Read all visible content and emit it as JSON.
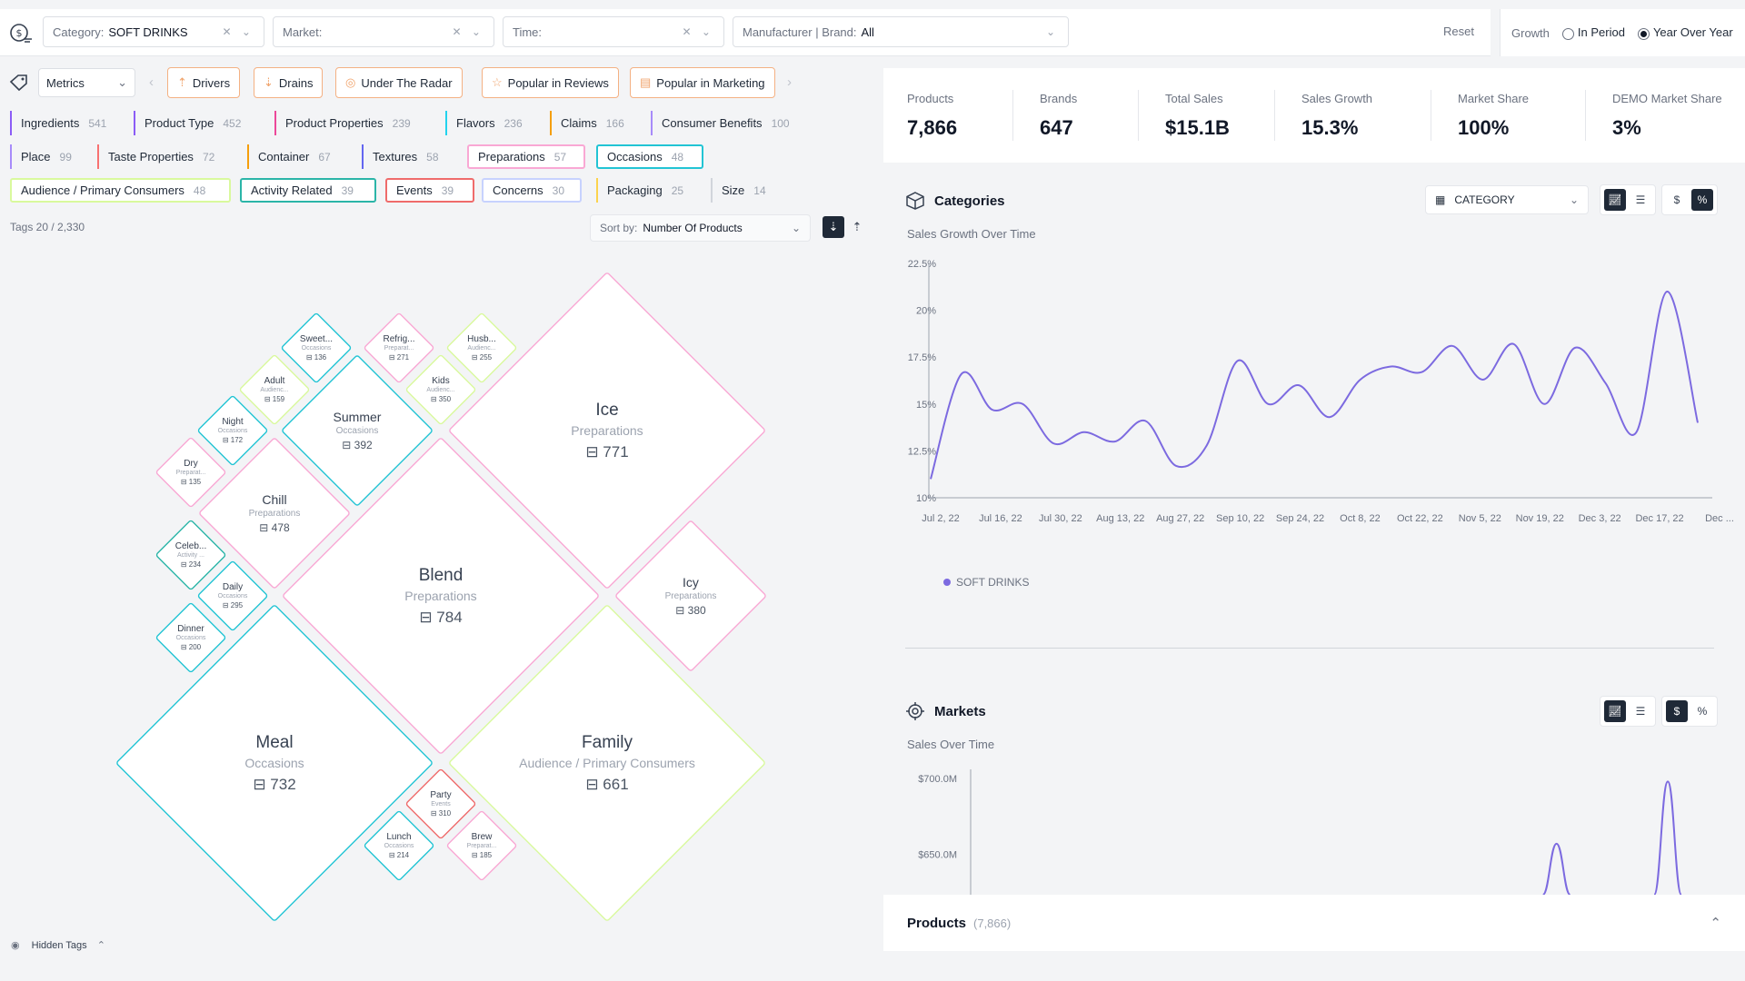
{
  "filters": {
    "category": {
      "label": "Category:",
      "value": "SOFT DRINKS"
    },
    "market": {
      "label": "Market:",
      "value": ""
    },
    "time": {
      "label": "Time:",
      "value": ""
    },
    "brand": {
      "label": "Manufacturer | Brand:",
      "value": "All"
    },
    "reset_label": "Reset"
  },
  "growth": {
    "label": "Growth",
    "options": [
      "In Period",
      "Year Over Year"
    ],
    "selected": "Year Over Year"
  },
  "metrics_select": "Metrics",
  "tabs": [
    {
      "label": "Drivers",
      "icon": "bars-up-icon"
    },
    {
      "label": "Drains",
      "icon": "bars-down-icon"
    },
    {
      "label": "Under The Radar",
      "icon": "radar-icon"
    },
    {
      "label": "Popular in Reviews",
      "icon": "star-icon"
    },
    {
      "label": "Popular in Marketing",
      "icon": "document-icon"
    }
  ],
  "tags": [
    {
      "label": "Ingredients",
      "count": "541",
      "color": "#8b5cf6",
      "style": "plain"
    },
    {
      "label": "Product Type",
      "count": "452",
      "color": "#8b5cf6",
      "style": "plain"
    },
    {
      "label": "Product Properties",
      "count": "239",
      "color": "#ec4899",
      "style": "plain"
    },
    {
      "label": "Flavors",
      "count": "236",
      "color": "#22d3ee",
      "style": "plain"
    },
    {
      "label": "Claims",
      "count": "166",
      "color": "#f59e0b",
      "style": "plain"
    },
    {
      "label": "Consumer Benefits",
      "count": "100",
      "color": "#a78bfa",
      "style": "plain"
    },
    {
      "label": "Place",
      "count": "99",
      "color": "#a78bfa",
      "style": "plain"
    },
    {
      "label": "Taste Properties",
      "count": "72",
      "color": "#f87171",
      "style": "plain"
    },
    {
      "label": "Container",
      "count": "67",
      "color": "#f59e0b",
      "style": "plain"
    },
    {
      "label": "Textures",
      "count": "58",
      "color": "#6366f1",
      "style": "plain"
    },
    {
      "label": "Preparations",
      "count": "57",
      "color": "#f9a8d4",
      "style": "box"
    },
    {
      "label": "Occasions",
      "count": "48",
      "color": "#22c4d4",
      "style": "box"
    },
    {
      "label": "Audience / Primary Consumers",
      "count": "48",
      "color": "#d9f99d",
      "style": "box"
    },
    {
      "label": "Activity Related",
      "count": "39",
      "color": "#2bb5a8",
      "style": "box"
    },
    {
      "label": "Events",
      "count": "39",
      "color": "#ef6b6b",
      "style": "box"
    },
    {
      "label": "Concerns",
      "count": "30",
      "color": "#c7d2fe",
      "style": "box"
    },
    {
      "label": "Packaging",
      "count": "25",
      "color": "#fcd34d",
      "style": "plain"
    },
    {
      "label": "Size",
      "count": "14",
      "color": "#d1d5db",
      "style": "plain"
    }
  ],
  "tags_count": "Tags 20 / 2,330",
  "sort": {
    "label": "Sort by:",
    "value": "Number Of Products"
  },
  "diamonds": [
    {
      "name": "Ice",
      "cat": "Preparations",
      "val": "771",
      "color": "#f9a8d4"
    },
    {
      "name": "Blend",
      "cat": "Preparations",
      "val": "784",
      "color": "#f9a8d4"
    },
    {
      "name": "Meal",
      "cat": "Occasions",
      "val": "732",
      "color": "#22c4d4"
    },
    {
      "name": "Family",
      "cat": "Audience / Primary Consumers",
      "val": "661",
      "color": "#d9f99d"
    },
    {
      "name": "Summer",
      "cat": "Occasions",
      "val": "392",
      "color": "#22c4d4"
    },
    {
      "name": "Chill",
      "cat": "Preparations",
      "val": "478",
      "color": "#f9a8d4"
    },
    {
      "name": "Icy",
      "cat": "Preparations",
      "val": "380",
      "color": "#f9a8d4"
    },
    {
      "name": "Sweet...",
      "cat": "Occasions",
      "val": "136",
      "color": "#22c4d4"
    },
    {
      "name": "Refrig...",
      "cat": "Preparat...",
      "val": "271",
      "color": "#f9a8d4"
    },
    {
      "name": "Husb...",
      "cat": "Audienc...",
      "val": "255",
      "color": "#d9f99d"
    },
    {
      "name": "Adult",
      "cat": "Audienc...",
      "val": "159",
      "color": "#d9f99d"
    },
    {
      "name": "Kids",
      "cat": "Audienc...",
      "val": "350",
      "color": "#d9f99d"
    },
    {
      "name": "Night",
      "cat": "Occasions",
      "val": "172",
      "color": "#22c4d4"
    },
    {
      "name": "Dry",
      "cat": "Preparat...",
      "val": "135",
      "color": "#f9a8d4"
    },
    {
      "name": "Celeb...",
      "cat": "Activity ...",
      "val": "234",
      "color": "#2bb5a8"
    },
    {
      "name": "Daily",
      "cat": "Occasions",
      "val": "295",
      "color": "#22c4d4"
    },
    {
      "name": "Dinner",
      "cat": "Occasions",
      "val": "200",
      "color": "#22c4d4"
    },
    {
      "name": "Party",
      "cat": "Events",
      "val": "310",
      "color": "#ef6b6b"
    },
    {
      "name": "Lunch",
      "cat": "Occasions",
      "val": "214",
      "color": "#22c4d4"
    },
    {
      "name": "Brew",
      "cat": "Preparat...",
      "val": "185",
      "color": "#f9a8d4"
    }
  ],
  "hidden_tags_label": "Hidden Tags",
  "kpis": [
    {
      "label": "Products",
      "value": "7,866"
    },
    {
      "label": "Brands",
      "value": "647"
    },
    {
      "label": "Total Sales",
      "value": "$15.1B"
    },
    {
      "label": "Sales Growth",
      "value": "15.3%"
    },
    {
      "label": "Market Share",
      "value": "100%"
    },
    {
      "label": "DEMO Market Share",
      "value": "3%"
    }
  ],
  "categories": {
    "title": "Categories",
    "select": "CATEGORY",
    "subtitle": "Sales Growth Over Time",
    "legend": "SOFT DRINKS"
  },
  "markets": {
    "title": "Markets",
    "subtitle": "Sales Over Time"
  },
  "products": {
    "title": "Products",
    "count": "(7,866)"
  },
  "chart_data": [
    {
      "type": "line",
      "title": "Sales Growth Over Time",
      "y_ticks": [
        "22.5%",
        "20%",
        "17.5%",
        "15%",
        "12.5%",
        "10%"
      ],
      "ylim": [
        10,
        22.5
      ],
      "x_ticks": [
        "Jul 2, 22",
        "Jul 16, 22",
        "Jul 30, 22",
        "Aug 13, 22",
        "Aug 27, 22",
        "Sep 10, 22",
        "Sep 24, 22",
        "Oct 8, 22",
        "Oct 22, 22",
        "Nov 5, 22",
        "Nov 19, 22",
        "Dec 3, 22",
        "Dec 17, 22",
        "Dec ..."
      ],
      "series": [
        {
          "name": "SOFT DRINKS",
          "color": "#7c6ae0",
          "values": [
            11.0,
            16.6,
            14.7,
            15.0,
            12.9,
            13.5,
            13.0,
            14.1,
            11.7,
            12.8,
            17.3,
            15.0,
            16.0,
            14.3,
            16.3,
            17.0,
            16.7,
            18.1,
            16.3,
            18.2,
            15.0,
            18.0,
            16.1,
            13.5,
            21.0,
            14.0
          ]
        }
      ]
    },
    {
      "type": "line",
      "title": "Sales Over Time",
      "y_ticks": [
        "$700.0M",
        "$650.0M"
      ],
      "ylim": [
        615,
        700
      ],
      "series": [
        {
          "name": "Markets",
          "color": "#7c6ae0",
          "peaks": [
            {
              "x": 0.79,
              "y": 657
            },
            {
              "x": 0.94,
              "y": 698
            }
          ]
        }
      ]
    }
  ]
}
